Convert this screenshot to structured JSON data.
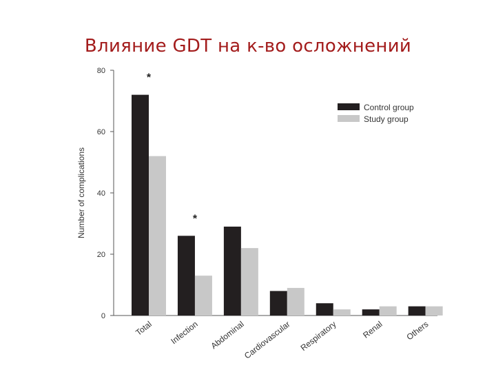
{
  "slide": {
    "title": "Влияние GDT на к-во осложнений"
  },
  "chart_data": {
    "type": "bar",
    "categories": [
      "Total",
      "Infection",
      "Abdominal",
      "Cardiovascular",
      "Respiratory",
      "Renal",
      "Others"
    ],
    "series": [
      {
        "name": "Control group",
        "values": [
          72,
          26,
          29,
          8,
          4,
          2,
          3
        ],
        "color": "#231f20"
      },
      {
        "name": "Study group",
        "values": [
          52,
          13,
          22,
          9,
          2,
          3,
          3
        ],
        "color": "#c8c8c8"
      }
    ],
    "ylabel": "Number of complications",
    "xlabel": "",
    "ylim": [
      0,
      80
    ],
    "yticks": [
      0,
      20,
      40,
      60,
      80
    ],
    "grid": false,
    "legend_position": "top-right",
    "annotations": [
      {
        "category": "Total",
        "text": "*"
      },
      {
        "category": "Infection",
        "text": "*"
      }
    ]
  }
}
